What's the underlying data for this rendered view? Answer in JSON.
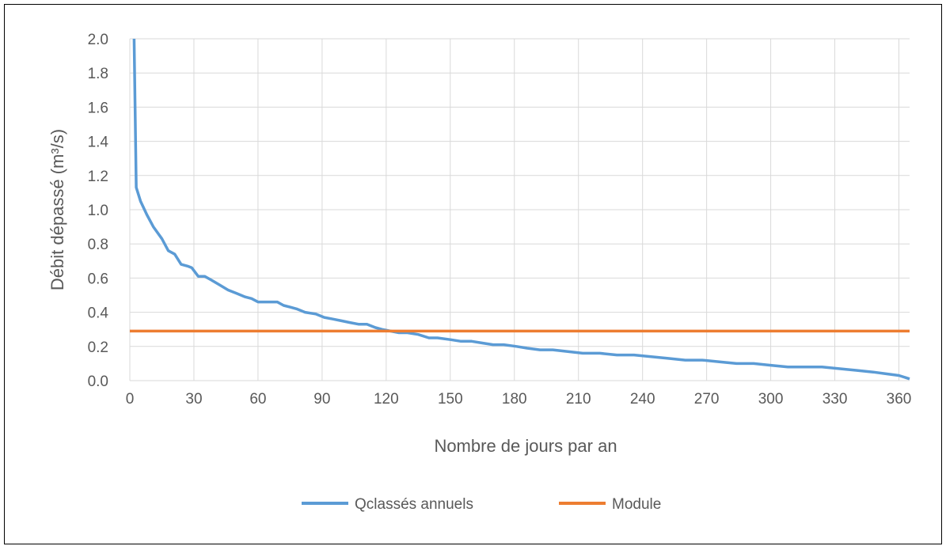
{
  "chart_data": {
    "type": "line",
    "title": "",
    "xlabel": "Nombre de jours par an",
    "ylabel": "Débit dépassé (m³/s)",
    "xlim": [
      0,
      365
    ],
    "ylim": [
      0,
      2.0
    ],
    "x_ticks": [
      "0",
      "30",
      "60",
      "90",
      "120",
      "150",
      "180",
      "210",
      "240",
      "270",
      "300",
      "330",
      "360"
    ],
    "y_ticks": [
      "0.0",
      "0.2",
      "0.4",
      "0.6",
      "0.8",
      "1.0",
      "1.2",
      "1.4",
      "1.6",
      "1.8",
      "2.0"
    ],
    "grid": true,
    "legend_position": "bottom",
    "series": [
      {
        "name": "Qclassés annuels",
        "color": "#5B9BD5",
        "x": [
          2,
          3,
          5,
          8,
          11,
          15,
          18,
          21,
          24,
          27,
          29,
          32,
          35,
          38,
          42,
          46,
          50,
          54,
          57,
          60,
          63,
          67,
          69,
          72,
          75,
          78,
          82,
          87,
          91,
          95,
          99,
          103,
          107,
          111,
          115,
          118,
          122,
          126,
          130,
          135,
          140,
          144,
          150,
          155,
          160,
          165,
          170,
          175,
          181,
          186,
          192,
          198,
          205,
          212,
          220,
          228,
          236,
          244,
          252,
          260,
          268,
          276,
          284,
          292,
          300,
          308,
          316,
          324,
          332,
          340,
          348,
          354,
          360,
          365
        ],
        "y": [
          2.0,
          1.13,
          1.05,
          0.97,
          0.9,
          0.83,
          0.76,
          0.74,
          0.68,
          0.67,
          0.66,
          0.61,
          0.61,
          0.59,
          0.56,
          0.53,
          0.51,
          0.49,
          0.48,
          0.46,
          0.46,
          0.46,
          0.46,
          0.44,
          0.43,
          0.42,
          0.4,
          0.39,
          0.37,
          0.36,
          0.35,
          0.34,
          0.33,
          0.33,
          0.31,
          0.3,
          0.29,
          0.28,
          0.28,
          0.27,
          0.25,
          0.25,
          0.24,
          0.23,
          0.23,
          0.22,
          0.21,
          0.21,
          0.2,
          0.19,
          0.18,
          0.18,
          0.17,
          0.16,
          0.16,
          0.15,
          0.15,
          0.14,
          0.13,
          0.12,
          0.12,
          0.11,
          0.1,
          0.1,
          0.09,
          0.08,
          0.08,
          0.08,
          0.07,
          0.06,
          0.05,
          0.04,
          0.03,
          0.01
        ]
      },
      {
        "name": "Module",
        "color": "#ED7D31",
        "x": [
          0,
          365
        ],
        "y": [
          0.29,
          0.29
        ]
      }
    ]
  }
}
